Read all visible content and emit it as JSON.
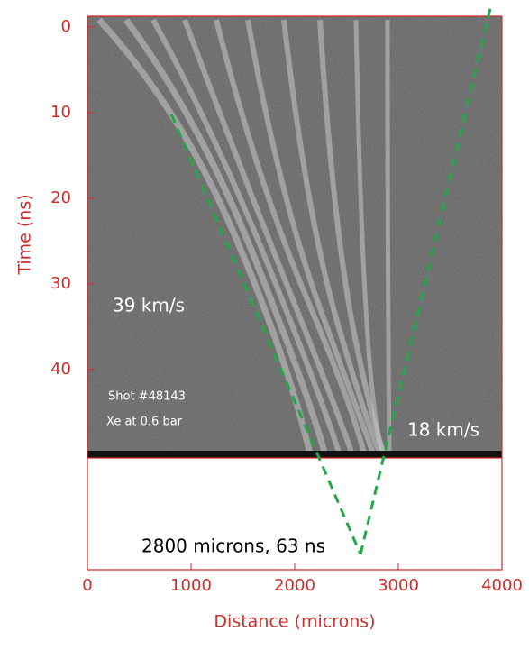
{
  "chart_data": {
    "type": "line",
    "xlabel": "Distance (microns)",
    "ylabel": "Time  (ns)",
    "xlim": [
      0,
      4000
    ],
    "ylim": [
      0,
      63.4
    ],
    "xticks": [
      0,
      1000,
      2000,
      3000,
      4000
    ],
    "yticks": [
      0,
      10,
      20,
      30,
      40
    ],
    "y_inverted": true,
    "series": [
      {
        "color": "#22a84a",
        "dashed": true,
        "x": [
          810,
          2635
        ],
        "values": [
          10.2,
          61.6
        ]
      },
      {
        "color": "#22a84a",
        "dashed": true,
        "x": [
          2635,
          3895
        ],
        "values": [
          61.6,
          -2.6
        ]
      }
    ],
    "annotations": [
      "39 km/s",
      "Shot #48143",
      "Xe at 0.6 bar",
      "18 km/s",
      "2800 microns, 63 ns"
    ]
  }
}
